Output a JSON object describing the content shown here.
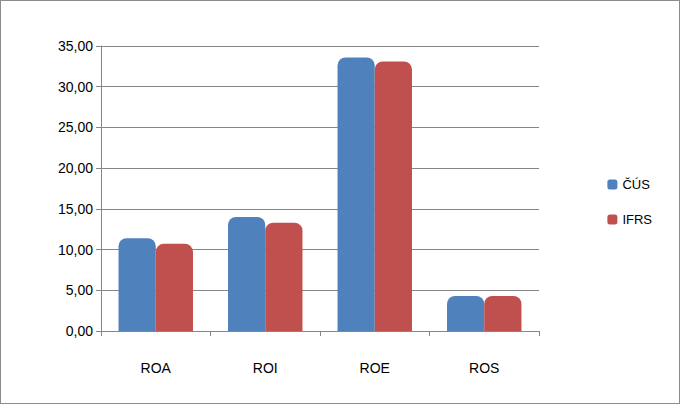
{
  "chart_data": {
    "type": "bar",
    "categories": [
      "ROA",
      "ROI",
      "ROE",
      "ROS"
    ],
    "series": [
      {
        "name": "ČÚS",
        "color": "#4f81bd",
        "values": [
          11.4,
          14.0,
          33.6,
          4.3
        ]
      },
      {
        "name": "IFRS",
        "color": "#c0504d",
        "values": [
          10.7,
          13.3,
          33.1,
          4.3
        ]
      }
    ],
    "ylim": [
      0,
      35
    ],
    "yticks": [
      {
        "value": 0,
        "label": "0,00"
      },
      {
        "value": 5,
        "label": "5,00"
      },
      {
        "value": 10,
        "label": "10,00"
      },
      {
        "value": 15,
        "label": "15,00"
      },
      {
        "value": 20,
        "label": "20,00"
      },
      {
        "value": 25,
        "label": "25,00"
      },
      {
        "value": 30,
        "label": "30,00"
      },
      {
        "value": 35,
        "label": "35,00"
      }
    ],
    "grid": true,
    "legend": "right"
  }
}
